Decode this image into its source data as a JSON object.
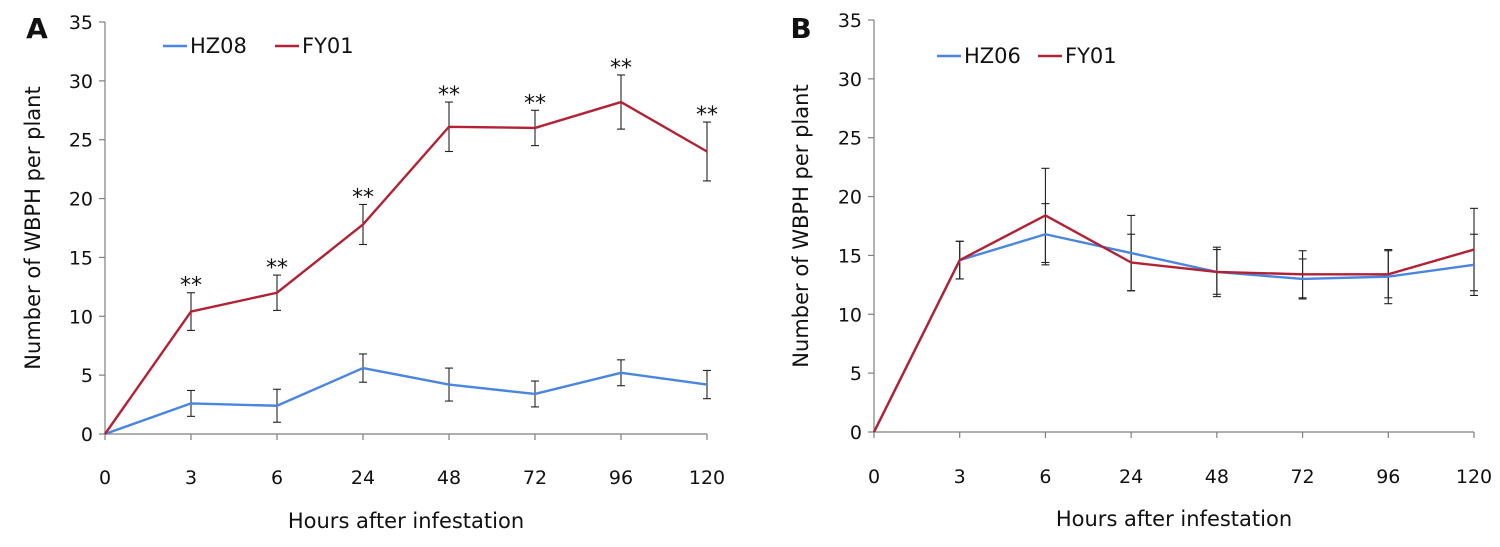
{
  "chart_data": [
    {
      "type": "line",
      "panel_label": "A",
      "categories": [
        "0",
        "3",
        "6",
        "24",
        "48",
        "72",
        "96",
        "120"
      ],
      "xlabel": "Hours after infestation",
      "ylabel": "Number of WBPH per plant",
      "ylim": [
        0,
        35
      ],
      "yticks": [
        0,
        5,
        10,
        15,
        20,
        25,
        30,
        35
      ],
      "legend_position": "top-left",
      "series": [
        {
          "name": "HZ08",
          "color": "#4a86e0",
          "values": [
            0,
            2.6,
            2.4,
            5.6,
            4.2,
            3.4,
            5.2,
            4.2
          ],
          "errors": [
            0,
            1.1,
            1.4,
            1.2,
            1.4,
            1.1,
            1.1,
            1.2
          ]
        },
        {
          "name": "FY01",
          "color": "#b22234",
          "values": [
            0,
            10.4,
            12.0,
            17.8,
            26.1,
            26.0,
            28.2,
            24.0
          ],
          "errors": [
            0,
            1.6,
            1.5,
            1.7,
            2.1,
            1.5,
            2.3,
            2.5
          ]
        }
      ],
      "annotations": [
        "",
        "**",
        "**",
        "**",
        "**",
        "**",
        "**",
        "**"
      ]
    },
    {
      "type": "line",
      "panel_label": "B",
      "categories": [
        "0",
        "3",
        "6",
        "24",
        "48",
        "72",
        "96",
        "120"
      ],
      "xlabel": "Hours after infestation",
      "ylabel": "Number of WBPH per plant",
      "ylim": [
        0,
        35
      ],
      "yticks": [
        0,
        5,
        10,
        15,
        20,
        25,
        30,
        35
      ],
      "legend_position": "top-left",
      "series": [
        {
          "name": "HZ06",
          "color": "#4a86e0",
          "values": [
            0,
            14.6,
            16.8,
            15.2,
            13.6,
            13.0,
            13.2,
            14.2
          ],
          "errors": [
            0,
            1.6,
            2.6,
            3.2,
            2.1,
            1.7,
            2.3,
            2.6
          ]
        },
        {
          "name": "FY01",
          "color": "#b22234",
          "values": [
            0,
            14.6,
            18.4,
            14.4,
            13.6,
            13.4,
            13.4,
            15.5
          ],
          "errors": [
            0,
            1.6,
            4.0,
            2.4,
            1.9,
            2.0,
            2.0,
            3.5
          ]
        }
      ],
      "annotations": [
        "",
        "",
        "",
        "",
        "",
        "",
        "",
        ""
      ]
    }
  ]
}
